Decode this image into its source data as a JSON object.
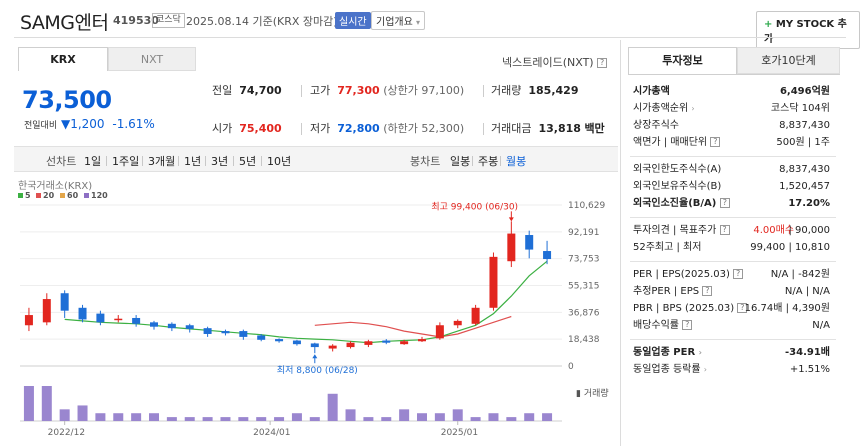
{
  "header": {
    "title": "SAMG엔터",
    "code": "419530",
    "market": "코스닥",
    "date": "2025.08.14 기준(KRX 장마감)",
    "realtime": "실시간",
    "overview": "기업개요",
    "my_stock": "MY STOCK 추가"
  },
  "tabs": {
    "krx": "KRX",
    "nxt": "NXT",
    "nexttrade": "넥스트레이드(NXT)"
  },
  "price": {
    "current": "73,500",
    "change_label": "전일대비",
    "change_value": "1,200",
    "change_pct": "-1.61%"
  },
  "summary": {
    "prev_label": "전일",
    "prev_value": "74,700",
    "high_label": "고가",
    "high_value": "77,300",
    "upper_limit": "(상한가 97,100)",
    "volume_label": "거래량",
    "volume_value": "185,429",
    "open_label": "시가",
    "open_value": "75,400",
    "low_label": "저가",
    "low_value": "72,800",
    "lower_limit": "(하한가 52,300)",
    "amount_label": "거래대금",
    "amount_value": "13,818",
    "amount_unit": "백만"
  },
  "period": {
    "line_label": "선차트",
    "line_items": [
      "1일",
      "1주일",
      "3개월",
      "1년",
      "3년",
      "5년",
      "10년"
    ],
    "bong_label": "봉차트",
    "bong_items": [
      "일봉",
      "주봉",
      "월봉"
    ]
  },
  "chart_data": {
    "type": "candlestick",
    "source_label": "한국거래소(KRX)",
    "ma_legend": [
      {
        "label": "5",
        "color": "#3cb043"
      },
      {
        "label": "20",
        "color": "#e05050"
      },
      {
        "label": "60",
        "color": "#e3a64a"
      },
      {
        "label": "120",
        "color": "#8d6fc4"
      }
    ],
    "y_ticks": [
      "110,629",
      "92,191",
      "73,753",
      "55,315",
      "36,876",
      "18,438",
      "0"
    ],
    "ylim": [
      0,
      110629
    ],
    "x_ticks": [
      "2022/12",
      "2024/01",
      "2025/01"
    ],
    "high_annotation": "최고 99,400 (06/30)",
    "low_annotation": "최저 8,800 (06/28)",
    "volume_label": "거래량",
    "candles": [
      {
        "o": 28000,
        "c": 35000,
        "h": 40000,
        "l": 24000
      },
      {
        "o": 30000,
        "c": 46000,
        "h": 50000,
        "l": 28000
      },
      {
        "o": 50000,
        "c": 38000,
        "h": 52000,
        "l": 33000
      },
      {
        "o": 40000,
        "c": 32000,
        "h": 42000,
        "l": 30000
      },
      {
        "o": 36000,
        "c": 30000,
        "h": 38000,
        "l": 28000
      },
      {
        "o": 32000,
        "c": 32500,
        "h": 35000,
        "l": 30000
      },
      {
        "o": 33000,
        "c": 29000,
        "h": 35000,
        "l": 27000
      },
      {
        "o": 30000,
        "c": 27000,
        "h": 31000,
        "l": 25000
      },
      {
        "o": 29000,
        "c": 26000,
        "h": 30000,
        "l": 24000
      },
      {
        "o": 28000,
        "c": 25500,
        "h": 29000,
        "l": 23000
      },
      {
        "o": 26000,
        "c": 22000,
        "h": 27000,
        "l": 20000
      },
      {
        "o": 24000,
        "c": 22500,
        "h": 25000,
        "l": 21000
      },
      {
        "o": 24000,
        "c": 20000,
        "h": 25000,
        "l": 18000
      },
      {
        "o": 21000,
        "c": 18000,
        "h": 22000,
        "l": 17000
      },
      {
        "o": 18500,
        "c": 17000,
        "h": 19000,
        "l": 16000
      },
      {
        "o": 17500,
        "c": 15000,
        "h": 18000,
        "l": 14000
      },
      {
        "o": 15500,
        "c": 13000,
        "h": 16000,
        "l": 8800
      },
      {
        "o": 12000,
        "c": 14000,
        "h": 15000,
        "l": 10000
      },
      {
        "o": 13000,
        "c": 16000,
        "h": 17000,
        "l": 12000
      },
      {
        "o": 14500,
        "c": 17000,
        "h": 18000,
        "l": 13000
      },
      {
        "o": 17500,
        "c": 16000,
        "h": 18500,
        "l": 15000
      },
      {
        "o": 15000,
        "c": 17000,
        "h": 18000,
        "l": 14500
      },
      {
        "o": 17000,
        "c": 18500,
        "h": 20000,
        "l": 16500
      },
      {
        "o": 19000,
        "c": 28000,
        "h": 30000,
        "l": 18000
      },
      {
        "o": 28000,
        "c": 31000,
        "h": 32000,
        "l": 26000
      },
      {
        "o": 29000,
        "c": 40000,
        "h": 42000,
        "l": 28000
      },
      {
        "o": 40000,
        "c": 75000,
        "h": 78000,
        "l": 38000
      },
      {
        "o": 72000,
        "c": 91000,
        "h": 99400,
        "l": 68000
      },
      {
        "o": 90000,
        "c": 80000,
        "h": 93000,
        "l": 74000
      },
      {
        "o": 79000,
        "c": 73500,
        "h": 86000,
        "l": 70000
      }
    ],
    "ma5": [
      32000,
      31000,
      30000,
      29500,
      29000,
      28000,
      26500,
      25500,
      24500,
      23500,
      22500,
      21500,
      20000,
      19000,
      18500,
      18000,
      17000,
      16000,
      17000,
      17500,
      18000,
      20000,
      24000,
      28000,
      36000,
      48000,
      62000,
      72000
    ],
    "ma20": [
      28000,
      29000,
      30000,
      29000,
      27000,
      24000,
      22000,
      20000,
      22000,
      26000,
      30000,
      34000
    ],
    "volumes": [
      9,
      9,
      3,
      4,
      2,
      2,
      2,
      2,
      1,
      1,
      1,
      1,
      1,
      1,
      1,
      2,
      1,
      7,
      3,
      1,
      1,
      3,
      2,
      2,
      3,
      1,
      2,
      1,
      2,
      2
    ]
  },
  "right_panel": {
    "tab_invest": "투자정보",
    "tab_quote": "호가10단계",
    "market_cap_label": "시가총액",
    "market_cap": "6,496억원",
    "rank_label": "시가총액순위",
    "rank": "코스닥 104위",
    "shares_label": "상장주식수",
    "shares": "8,837,430",
    "par_label": "액면가 | 매매단위",
    "par": "500원 | 1주",
    "foreign_limit_label": "외국인한도주식수(A)",
    "foreign_limit": "8,837,430",
    "foreign_hold_label": "외국인보유주식수(B)",
    "foreign_hold": "1,520,457",
    "foreign_ratio_label": "외국인소진율(B/A)",
    "foreign_ratio": "17.20%",
    "opinion_label": "투자의견 | 목표주가",
    "opinion": "4.00매수",
    "target": "| 90,000",
    "week52_label": "52주최고 | 최저",
    "week52": "99,400 | 10,810",
    "per_label": "PER | EPS(2025.03)",
    "per": "N/A | -842원",
    "est_per_label": "추정PER | EPS",
    "est_per": "N/A | N/A",
    "pbr_label": "PBR | BPS (2025.03)",
    "pbr": "16.74배 | 4,390원",
    "div_label": "배당수익률",
    "div": "N/A",
    "sector_per_label": "동일업종 PER",
    "sector_per": "-34.91배",
    "sector_rate_label": "동일업종 등락률",
    "sector_rate": "+1.51%"
  }
}
